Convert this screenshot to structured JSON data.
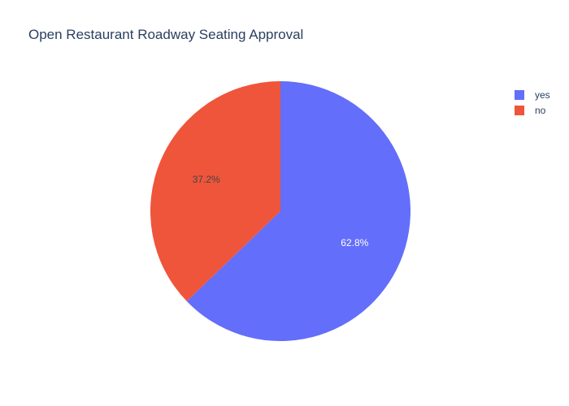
{
  "chart_data": {
    "type": "pie",
    "title": "Open Restaurant Roadway Seating Approval",
    "labels": [
      "yes",
      "no"
    ],
    "values": [
      62.8,
      37.2
    ],
    "text_labels": [
      "62.8%",
      "37.2%"
    ],
    "colors": [
      "#636efa",
      "#ef553b"
    ],
    "direction": "counterclockwise",
    "start_angle_deg": 90,
    "legend_position": "top-right"
  }
}
